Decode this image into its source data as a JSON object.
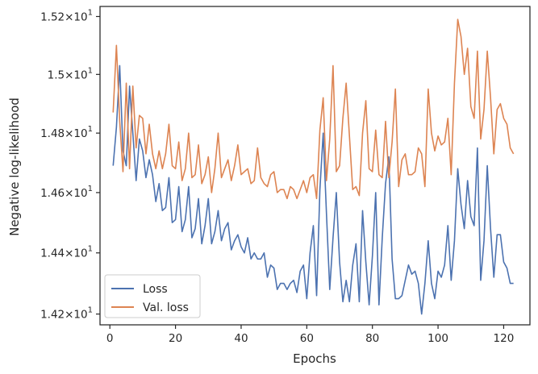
{
  "chart_data": {
    "type": "line",
    "title": "",
    "xlabel": "Epochs",
    "ylabel": "Negative log-likelihood",
    "xlim": [
      -3,
      128
    ],
    "ylim": [
      14.165,
      15.235
    ],
    "yscale": "log",
    "grid": false,
    "legend_position": "bottom-left",
    "x_ticks": [
      0,
      20,
      40,
      60,
      80,
      100,
      120
    ],
    "x_tick_labels": [
      "0",
      "20",
      "40",
      "60",
      "80",
      "100",
      "120"
    ],
    "y_ticks": [
      {
        "value": 14.2,
        "base": "1.42",
        "exp": "1"
      },
      {
        "value": 14.4,
        "base": "1.44",
        "exp": "1"
      },
      {
        "value": 14.6,
        "base": "1.46",
        "exp": "1"
      },
      {
        "value": 14.8,
        "base": "1.48",
        "exp": "1"
      },
      {
        "value": 15.0,
        "base": "1.5",
        "exp": "1"
      },
      {
        "value": 15.2,
        "base": "1.52",
        "exp": "1"
      }
    ],
    "x": [
      1,
      2,
      3,
      4,
      5,
      6,
      7,
      8,
      9,
      10,
      11,
      12,
      13,
      14,
      15,
      16,
      17,
      18,
      19,
      20,
      21,
      22,
      23,
      24,
      25,
      26,
      27,
      28,
      29,
      30,
      31,
      32,
      33,
      34,
      35,
      36,
      37,
      38,
      39,
      40,
      41,
      42,
      43,
      44,
      45,
      46,
      47,
      48,
      49,
      50,
      51,
      52,
      53,
      54,
      55,
      56,
      57,
      58,
      59,
      60,
      61,
      62,
      63,
      64,
      65,
      66,
      67,
      68,
      69,
      70,
      71,
      72,
      73,
      74,
      75,
      76,
      77,
      78,
      79,
      80,
      81,
      82,
      83,
      84,
      85,
      86,
      87,
      88,
      89,
      90,
      91,
      92,
      93,
      94,
      95,
      96,
      97,
      98,
      99,
      100,
      101,
      102,
      103,
      104,
      105,
      106,
      107,
      108,
      109,
      110,
      111,
      112,
      113,
      114,
      115,
      116,
      117,
      118,
      119,
      120,
      121,
      122,
      123
    ],
    "series": [
      {
        "name": "Loss",
        "color": "#4c72b0",
        "values": [
          14.69,
          14.82,
          15.03,
          14.74,
          14.69,
          14.96,
          14.8,
          14.64,
          14.78,
          14.74,
          14.65,
          14.71,
          14.66,
          14.57,
          14.63,
          14.54,
          14.55,
          14.65,
          14.5,
          14.51,
          14.62,
          14.47,
          14.51,
          14.62,
          14.45,
          14.48,
          14.58,
          14.43,
          14.49,
          14.58,
          14.43,
          14.47,
          14.54,
          14.44,
          14.48,
          14.5,
          14.41,
          14.44,
          14.46,
          14.42,
          14.4,
          14.45,
          14.38,
          14.4,
          14.38,
          14.38,
          14.4,
          14.32,
          14.36,
          14.35,
          14.28,
          14.3,
          14.3,
          14.28,
          14.3,
          14.31,
          14.27,
          14.34,
          14.36,
          14.25,
          14.4,
          14.49,
          14.26,
          14.61,
          14.8,
          14.53,
          14.28,
          14.45,
          14.6,
          14.37,
          14.24,
          14.31,
          14.24,
          14.36,
          14.43,
          14.24,
          14.54,
          14.37,
          14.23,
          14.39,
          14.6,
          14.23,
          14.45,
          14.63,
          14.72,
          14.38,
          14.25,
          14.25,
          14.26,
          14.31,
          14.36,
          14.33,
          14.34,
          14.3,
          14.2,
          14.3,
          14.44,
          14.3,
          14.25,
          14.34,
          14.32,
          14.36,
          14.49,
          14.31,
          14.44,
          14.68,
          14.56,
          14.48,
          14.64,
          14.52,
          14.49,
          14.75,
          14.31,
          14.44,
          14.69,
          14.48,
          14.32,
          14.46,
          14.46,
          14.37,
          14.35,
          14.3,
          14.3
        ]
      },
      {
        "name": "Val. loss",
        "color": "#dd8452",
        "values": [
          14.87,
          15.1,
          14.84,
          14.67,
          14.97,
          14.68,
          14.96,
          14.75,
          14.86,
          14.85,
          14.73,
          14.83,
          14.73,
          14.68,
          14.74,
          14.68,
          14.73,
          14.83,
          14.69,
          14.68,
          14.77,
          14.64,
          14.68,
          14.8,
          14.65,
          14.66,
          14.76,
          14.63,
          14.66,
          14.72,
          14.6,
          14.68,
          14.8,
          14.65,
          14.68,
          14.71,
          14.64,
          14.69,
          14.76,
          14.66,
          14.67,
          14.68,
          14.63,
          14.64,
          14.75,
          14.65,
          14.63,
          14.62,
          14.66,
          14.67,
          14.6,
          14.61,
          14.61,
          14.58,
          14.62,
          14.61,
          14.58,
          14.61,
          14.64,
          14.6,
          14.65,
          14.66,
          14.58,
          14.81,
          14.92,
          14.64,
          14.78,
          15.03,
          14.67,
          14.69,
          14.85,
          14.97,
          14.79,
          14.61,
          14.62,
          14.59,
          14.8,
          14.91,
          14.68,
          14.67,
          14.81,
          14.66,
          14.65,
          14.84,
          14.65,
          14.77,
          14.95,
          14.62,
          14.71,
          14.73,
          14.66,
          14.66,
          14.67,
          14.75,
          14.73,
          14.62,
          14.95,
          14.8,
          14.74,
          14.79,
          14.76,
          14.77,
          14.85,
          14.66,
          14.97,
          15.19,
          15.13,
          15.0,
          15.09,
          14.89,
          14.85,
          15.08,
          14.78,
          14.88,
          15.08,
          14.92,
          14.73,
          14.88,
          14.9,
          14.85,
          14.83,
          14.75,
          14.73
        ]
      }
    ]
  }
}
